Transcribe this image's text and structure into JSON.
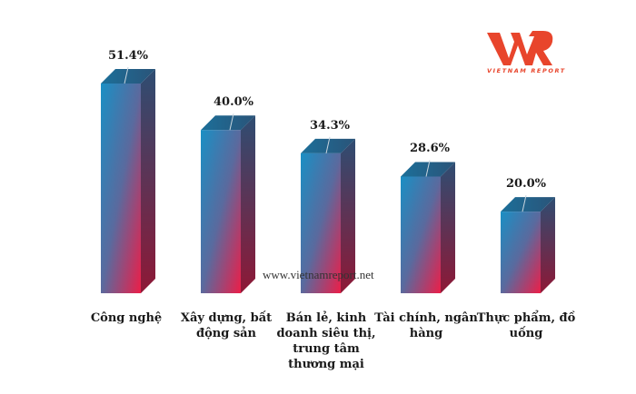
{
  "logo": {
    "mark": "VNR",
    "text": "VIETNAM REPORT",
    "color": "#e8452c"
  },
  "watermark": "www.vietnamreport.net",
  "chart_data": {
    "type": "bar",
    "title": "",
    "xlabel": "",
    "ylabel": "",
    "categories": [
      "Công nghệ",
      "Xây dựng, bất động sản",
      "Bán lẻ, kinh doanh siêu thị, trung tâm thương mại",
      "Tài chính, ngân hàng",
      "Thực phẩm, đồ uống"
    ],
    "values": [
      51.4,
      40.0,
      34.3,
      28.6,
      20.0
    ],
    "value_labels": [
      "51.4%",
      "40.0%",
      "34.3%",
      "28.6%",
      "20.0%"
    ],
    "unit": "%",
    "grid": false,
    "legend": null,
    "style": "3d-gradient-column",
    "colors": {
      "gradient_top": "#1a8fc4",
      "gradient_bottom": "#e8244a",
      "side_top": "#2b4a6e",
      "side_bottom": "#8a1a35"
    }
  },
  "categories_lines": [
    [
      "Công nghệ"
    ],
    [
      "Xây dựng, bất",
      "động sản"
    ],
    [
      "Bán lẻ, kinh",
      "doanh siêu thị,",
      "trung tâm",
      "thương mại"
    ],
    [
      "Tài chính, ngân",
      "hàng"
    ],
    [
      "Thực phẩm, đồ",
      "uống"
    ]
  ]
}
